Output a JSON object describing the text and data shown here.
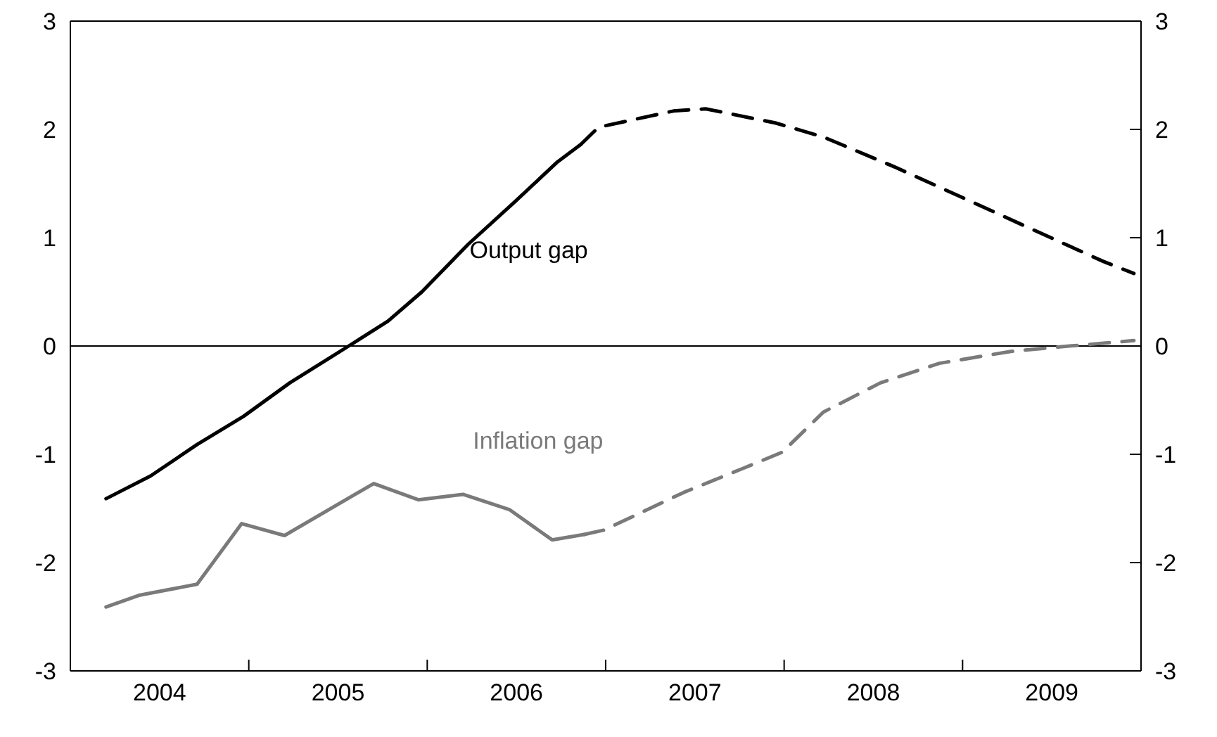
{
  "chart_data": {
    "type": "line",
    "xlim": [
      2004,
      2010
    ],
    "xticks": [
      {
        "value": 2004.5,
        "label": "2004"
      },
      {
        "value": 2005,
        "label": null
      },
      {
        "value": 2005.5,
        "label": "2005"
      },
      {
        "value": 2006,
        "label": null
      },
      {
        "value": 2006.5,
        "label": "2006"
      },
      {
        "value": 2007,
        "label": null
      },
      {
        "value": 2007.5,
        "label": "2007"
      },
      {
        "value": 2008,
        "label": null
      },
      {
        "value": 2008.5,
        "label": "2008"
      },
      {
        "value": 2009,
        "label": null
      },
      {
        "value": 2009.5,
        "label": "2009"
      }
    ],
    "ylim": [
      -3,
      3
    ],
    "yticks": [
      -3,
      -2,
      -1,
      0,
      1,
      2,
      3
    ],
    "y2lim": [
      -3,
      3
    ],
    "y2ticks": [
      -3,
      -2,
      -1,
      0,
      1,
      2,
      3
    ],
    "grid": false,
    "legend": false,
    "marker": "none",
    "ref_lines": [
      {
        "axis": "y",
        "value": 0,
        "color": "#000000"
      }
    ],
    "series": [
      {
        "name": "Output gap",
        "color": "#000000",
        "line_style": "solid",
        "x": [
          2004.2,
          2004.45,
          2004.71,
          2004.97,
          2005.23,
          2005.56,
          2005.78,
          2005.97,
          2006.23,
          2006.49,
          2006.73,
          2006.86
        ],
        "values": [
          -1.41,
          -1.2,
          -0.91,
          -0.65,
          -0.34,
          0,
          0.23,
          0.5,
          0.94,
          1.33,
          1.7,
          1.86
        ]
      },
      {
        "color": "#000000",
        "line_style": "dashed",
        "x": [
          2006.86,
          2006.96,
          2007.38,
          2007.56,
          2007.95,
          2008.22,
          2008.61,
          2009.0,
          2009.4,
          2009.79,
          2009.96
        ],
        "values": [
          1.86,
          2.02,
          2.17,
          2.19,
          2.06,
          1.93,
          1.66,
          1.37,
          1.07,
          0.78,
          0.67
        ]
      },
      {
        "name": "Inflation gap",
        "color": "#7a7a7a",
        "line_style": "solid",
        "x": [
          2004.2,
          2004.39,
          2004.71,
          2004.96,
          2005.2,
          2005.7,
          2005.95,
          2006.2,
          2006.46,
          2006.7,
          2006.88
        ],
        "values": [
          -2.41,
          -2.3,
          -2.2,
          -1.64,
          -1.75,
          -1.27,
          -1.42,
          -1.37,
          -1.51,
          -1.79,
          -1.74
        ]
      },
      {
        "color": "#7a7a7a",
        "line_style": "dashed",
        "x": [
          2006.88,
          2006.99,
          2007.44,
          2007.77,
          2007.99,
          2008.22,
          2008.54,
          2008.87,
          2009.27,
          2009.53,
          2009.96
        ],
        "values": [
          -1.74,
          -1.7,
          -1.35,
          -1.13,
          -0.98,
          -0.61,
          -0.34,
          -0.16,
          -0.05,
          -0.01,
          0.05
        ]
      }
    ]
  }
}
